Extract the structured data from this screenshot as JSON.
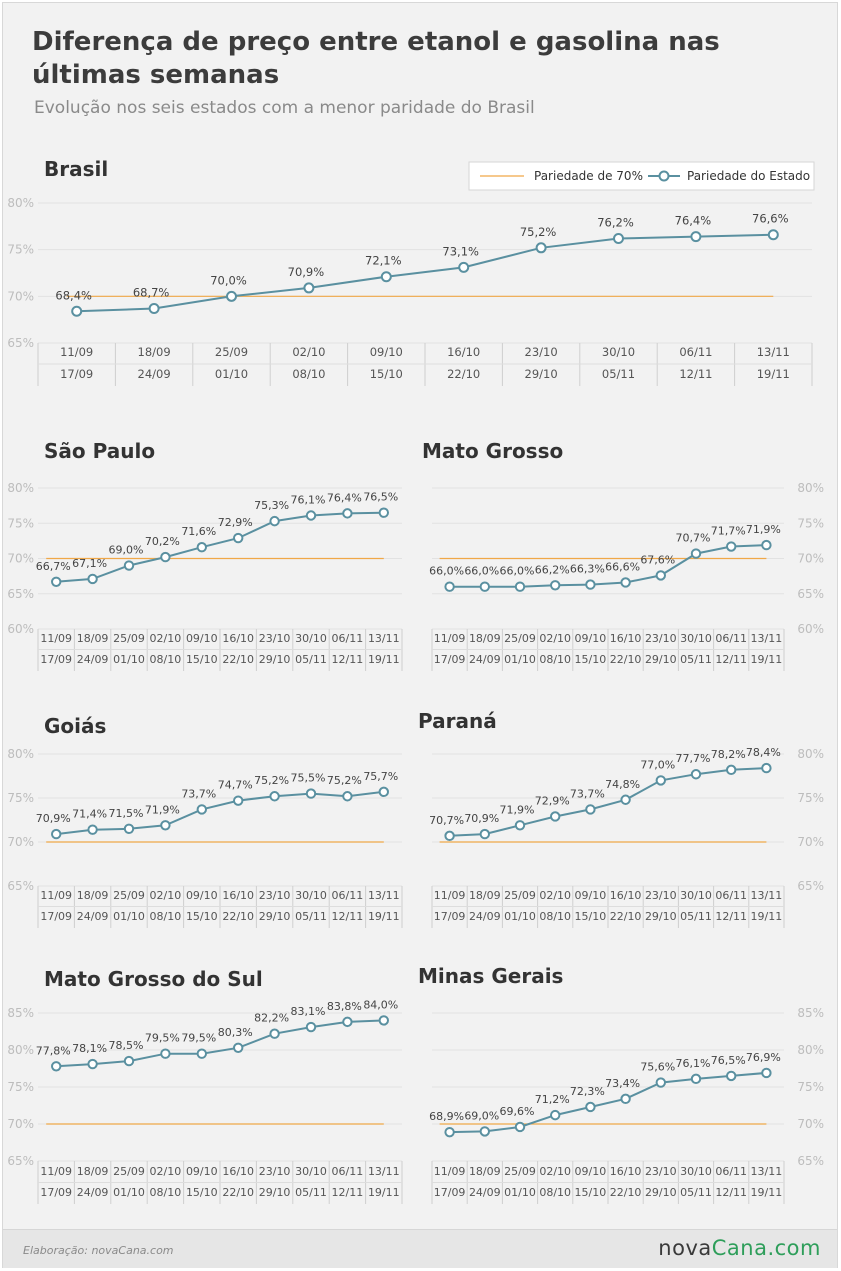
{
  "title": "Diferença de preço entre etanol e gasolina nas últimas semanas",
  "subtitle": "Evolução nos seis estados com a menor paridade do Brasil",
  "legend": {
    "items": [
      "Pariedade de 70%",
      "Pariedade do Estado"
    ]
  },
  "colors": {
    "reference_line": "#f0a848",
    "series_line": "#5a90a0",
    "marker_fill": "#ffffff",
    "logo_accent": "#2e9e5a"
  },
  "footer": {
    "credit": "Elaboração: novaCana.com",
    "logo_part1": "nova",
    "logo_part2": "Cana.com"
  },
  "chart_data": [
    {
      "type": "line",
      "title": "Brasil",
      "categories": [
        "11/09 - 17/09",
        "18/09 - 24/09",
        "25/09 - 01/10",
        "02/10 - 08/10",
        "09/10 - 15/10",
        "16/10 - 22/10",
        "23/10 - 29/10",
        "30/10 - 05/11",
        "06/11 - 12/11",
        "13/11 - 19/11"
      ],
      "week_start": [
        "11/09",
        "18/09",
        "25/09",
        "02/10",
        "09/10",
        "16/10",
        "23/10",
        "30/10",
        "06/11",
        "13/11"
      ],
      "week_end": [
        "17/09",
        "24/09",
        "01/10",
        "08/10",
        "15/10",
        "22/10",
        "29/10",
        "05/11",
        "12/11",
        "19/11"
      ],
      "series": [
        {
          "name": "Pariedade do Estado",
          "values": [
            68.4,
            68.7,
            70.0,
            70.9,
            72.1,
            73.1,
            75.2,
            76.2,
            76.4,
            76.6
          ]
        },
        {
          "name": "Pariedade de 70%",
          "values": [
            70,
            70,
            70,
            70,
            70,
            70,
            70,
            70,
            70,
            70
          ]
        }
      ],
      "value_labels": [
        "68,4%",
        "68,7%",
        "70,0%",
        "70,9%",
        "72,1%",
        "73,1%",
        "75,2%",
        "76,2%",
        "76,4%",
        "76,6%"
      ],
      "ylim": [
        65,
        80
      ],
      "yticks": [
        "80%",
        "75%",
        "70%",
        "65%"
      ],
      "yaxis_side": "left",
      "legend_position": "top-right",
      "grid": true
    },
    {
      "type": "line",
      "title": "São Paulo",
      "week_start": [
        "11/09",
        "18/09",
        "25/09",
        "02/10",
        "09/10",
        "16/10",
        "23/10",
        "30/10",
        "06/11",
        "13/11"
      ],
      "week_end": [
        "17/09",
        "24/09",
        "01/10",
        "08/10",
        "15/10",
        "22/10",
        "29/10",
        "05/11",
        "12/11",
        "19/11"
      ],
      "series": [
        {
          "name": "Pariedade do Estado",
          "values": [
            66.7,
            67.1,
            69.0,
            70.2,
            71.6,
            72.9,
            75.3,
            76.1,
            76.4,
            76.5
          ]
        },
        {
          "name": "Pariedade de 70%",
          "values": [
            70,
            70,
            70,
            70,
            70,
            70,
            70,
            70,
            70,
            70
          ]
        }
      ],
      "value_labels": [
        "66,7%",
        "67,1%",
        "69,0%",
        "70,2%",
        "71,6%",
        "72,9%",
        "75,3%",
        "76,1%",
        "76,4%",
        "76,5%"
      ],
      "ylim": [
        60,
        80
      ],
      "yticks": [
        "80%",
        "75%",
        "70%",
        "65%",
        "60%"
      ],
      "yaxis_side": "left",
      "grid": true
    },
    {
      "type": "line",
      "title": "Mato Grosso",
      "week_start": [
        "11/09",
        "18/09",
        "25/09",
        "02/10",
        "09/10",
        "16/10",
        "23/10",
        "30/10",
        "06/11",
        "13/11"
      ],
      "week_end": [
        "17/09",
        "24/09",
        "01/10",
        "08/10",
        "15/10",
        "22/10",
        "29/10",
        "05/11",
        "12/11",
        "19/11"
      ],
      "series": [
        {
          "name": "Pariedade do Estado",
          "values": [
            66.0,
            66.0,
            66.0,
            66.2,
            66.3,
            66.6,
            67.6,
            70.7,
            71.7,
            71.9
          ]
        },
        {
          "name": "Pariedade de 70%",
          "values": [
            70,
            70,
            70,
            70,
            70,
            70,
            70,
            70,
            70,
            70
          ]
        }
      ],
      "value_labels": [
        "66,0%",
        "66,0%",
        "66,0%",
        "66,2%",
        "66,3%",
        "66,6%",
        "67,6%",
        "70,7%",
        "71,7%",
        "71,9%"
      ],
      "ylim": [
        60,
        80
      ],
      "yticks": [
        "80%",
        "75%",
        "70%",
        "65%",
        "60%"
      ],
      "yaxis_side": "right",
      "grid": true
    },
    {
      "type": "line",
      "title": "Goiás",
      "week_start": [
        "11/09",
        "18/09",
        "25/09",
        "02/10",
        "09/10",
        "16/10",
        "23/10",
        "30/10",
        "06/11",
        "13/11"
      ],
      "week_end": [
        "17/09",
        "24/09",
        "01/10",
        "08/10",
        "15/10",
        "22/10",
        "29/10",
        "05/11",
        "12/11",
        "19/11"
      ],
      "series": [
        {
          "name": "Pariedade do Estado",
          "values": [
            70.9,
            71.4,
            71.5,
            71.9,
            73.7,
            74.7,
            75.2,
            75.5,
            75.2,
            75.7
          ]
        },
        {
          "name": "Pariedade de 70%",
          "values": [
            70,
            70,
            70,
            70,
            70,
            70,
            70,
            70,
            70,
            70
          ]
        }
      ],
      "value_labels": [
        "70,9%",
        "71,4%",
        "71,5%",
        "71,9%",
        "73,7%",
        "74,7%",
        "75,2%",
        "75,5%",
        "75,2%",
        "75,7%"
      ],
      "ylim": [
        65,
        80
      ],
      "yticks": [
        "80%",
        "75%",
        "70%",
        "65%"
      ],
      "yaxis_side": "left",
      "grid": true
    },
    {
      "type": "line",
      "title": "Paraná",
      "week_start": [
        "11/09",
        "18/09",
        "25/09",
        "02/10",
        "09/10",
        "16/10",
        "23/10",
        "30/10",
        "06/11",
        "13/11"
      ],
      "week_end": [
        "17/09",
        "24/09",
        "01/10",
        "08/10",
        "15/10",
        "22/10",
        "29/10",
        "05/11",
        "12/11",
        "19/11"
      ],
      "series": [
        {
          "name": "Pariedade do Estado",
          "values": [
            70.7,
            70.9,
            71.9,
            72.9,
            73.7,
            74.8,
            77.0,
            77.7,
            78.2,
            78.4
          ]
        },
        {
          "name": "Pariedade de 70%",
          "values": [
            70,
            70,
            70,
            70,
            70,
            70,
            70,
            70,
            70,
            70
          ]
        }
      ],
      "value_labels": [
        "70,7%",
        "70,9%",
        "71,9%",
        "72,9%",
        "73,7%",
        "74,8%",
        "77,0%",
        "77,7%",
        "78,2%",
        "78,4%"
      ],
      "ylim": [
        65,
        80
      ],
      "yticks": [
        "80%",
        "75%",
        "70%",
        "65%"
      ],
      "yaxis_side": "right",
      "grid": true
    },
    {
      "type": "line",
      "title": "Mato Grosso do Sul",
      "week_start": [
        "11/09",
        "18/09",
        "25/09",
        "02/10",
        "09/10",
        "16/10",
        "23/10",
        "30/10",
        "06/11",
        "13/11"
      ],
      "week_end": [
        "17/09",
        "24/09",
        "01/10",
        "08/10",
        "15/10",
        "22/10",
        "29/10",
        "05/11",
        "12/11",
        "19/11"
      ],
      "series": [
        {
          "name": "Pariedade do Estado",
          "values": [
            77.8,
            78.1,
            78.5,
            79.5,
            79.5,
            80.3,
            82.2,
            83.1,
            83.8,
            84.0
          ]
        },
        {
          "name": "Pariedade de 70%",
          "values": [
            70,
            70,
            70,
            70,
            70,
            70,
            70,
            70,
            70,
            70
          ]
        }
      ],
      "value_labels": [
        "77,8%",
        "78,1%",
        "78,5%",
        "79,5%",
        "79,5%",
        "80,3%",
        "82,2%",
        "83,1%",
        "83,8%",
        "84,0%"
      ],
      "ylim": [
        65,
        85
      ],
      "yticks": [
        "85%",
        "80%",
        "75%",
        "70%",
        "65%"
      ],
      "yaxis_side": "left",
      "grid": true
    },
    {
      "type": "line",
      "title": "Minas Gerais",
      "week_start": [
        "11/09",
        "18/09",
        "25/09",
        "02/10",
        "09/10",
        "16/10",
        "23/10",
        "30/10",
        "06/11",
        "13/11"
      ],
      "week_end": [
        "17/09",
        "24/09",
        "01/10",
        "08/10",
        "15/10",
        "22/10",
        "29/10",
        "05/11",
        "12/11",
        "19/11"
      ],
      "series": [
        {
          "name": "Pariedade do Estado",
          "values": [
            68.9,
            69.0,
            69.6,
            71.2,
            72.3,
            73.4,
            75.6,
            76.1,
            76.5,
            76.9
          ]
        },
        {
          "name": "Pariedade de 70%",
          "values": [
            70,
            70,
            70,
            70,
            70,
            70,
            70,
            70,
            70,
            70
          ]
        }
      ],
      "value_labels": [
        "68,9%",
        "69,0%",
        "69,6%",
        "71,2%",
        "72,3%",
        "73,4%",
        "75,6%",
        "76,1%",
        "76,5%",
        "76,9%"
      ],
      "ylim": [
        65,
        85
      ],
      "yticks": [
        "85%",
        "80%",
        "75%",
        "70%",
        "65%"
      ],
      "yaxis_side": "right",
      "grid": true
    }
  ]
}
